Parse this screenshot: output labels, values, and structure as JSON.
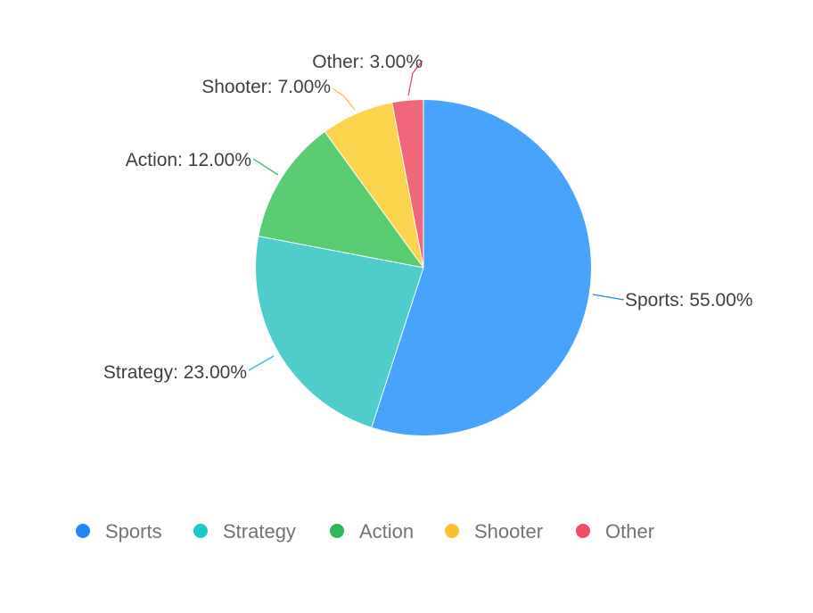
{
  "chart_data": {
    "type": "pie",
    "title": "",
    "categories": [
      "Sports",
      "Strategy",
      "Action",
      "Shooter",
      "Other"
    ],
    "values": [
      55,
      23,
      12,
      7,
      3
    ],
    "labels": [
      "Sports: 55.00%",
      "Strategy: 23.00%",
      "Action: 12.00%",
      "Shooter: 7.00%",
      "Other: 3.00%"
    ],
    "colors": [
      "#48A3FF",
      "#4ECDCC",
      "#59CC72",
      "#FCD34D",
      "#F0677B"
    ],
    "legend_colors": [
      "#1E88F5",
      "#1CC8C8",
      "#2DB85A",
      "#FBC02D",
      "#EE4D65"
    ],
    "legend_position": "bottom"
  }
}
